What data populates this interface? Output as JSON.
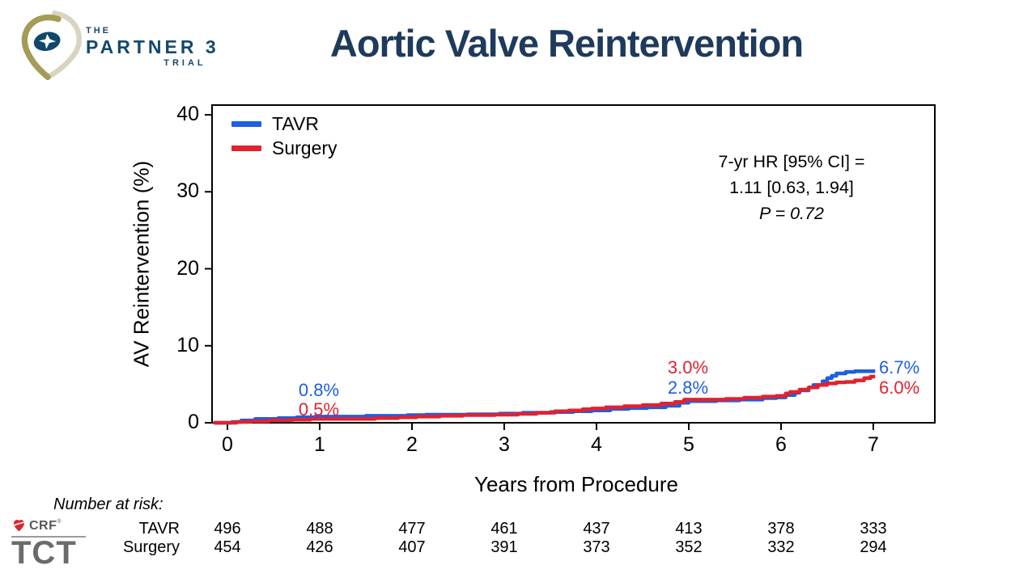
{
  "slide": {
    "title": "Aortic Valve Reintervention"
  },
  "partner_logo": {
    "the": "THE",
    "name": "PARTNER 3",
    "trial": "TRIAL"
  },
  "tct_logo": {
    "crf": "CRF",
    "reg_mark": "®",
    "tct": "TCT"
  },
  "chart_data": {
    "type": "line",
    "subtype": "kaplan-meier-step",
    "title": "Aortic Valve Reintervention",
    "xlabel": "Years from Procedure",
    "ylabel": "AV Reintervention (%)",
    "xlim": [
      0,
      7.65
    ],
    "ylim": [
      0,
      40
    ],
    "x_ticks": [
      0,
      1,
      2,
      3,
      4,
      5,
      6,
      7
    ],
    "y_ticks": [
      0,
      10,
      20,
      30,
      40
    ],
    "grid": false,
    "legend_position": "top-left-inside",
    "annotation": {
      "line1": "7-yr HR [95% CI] =",
      "line2": "1.11 [0.63, 1.94]",
      "line3": "P = 0.72"
    },
    "series": [
      {
        "name": "TAVR",
        "color": "#1e5ee0",
        "points": [
          [
            0.05,
            0.1
          ],
          [
            0.15,
            0.3
          ],
          [
            0.3,
            0.5
          ],
          [
            0.55,
            0.6
          ],
          [
            0.75,
            0.7
          ],
          [
            0.95,
            0.8
          ],
          [
            1.5,
            0.9
          ],
          [
            1.95,
            1.0
          ],
          [
            2.15,
            1.05
          ],
          [
            2.6,
            1.1
          ],
          [
            2.95,
            1.2
          ],
          [
            3.2,
            1.3
          ],
          [
            3.5,
            1.4
          ],
          [
            3.75,
            1.5
          ],
          [
            3.95,
            1.6
          ],
          [
            4.15,
            1.8
          ],
          [
            4.35,
            1.9
          ],
          [
            4.55,
            2.0
          ],
          [
            4.75,
            2.2
          ],
          [
            4.9,
            2.6
          ],
          [
            5.0,
            2.8
          ],
          [
            5.3,
            2.9
          ],
          [
            5.55,
            3.0
          ],
          [
            5.8,
            3.2
          ],
          [
            5.95,
            3.3
          ],
          [
            6.05,
            3.6
          ],
          [
            6.15,
            3.9
          ],
          [
            6.2,
            4.2
          ],
          [
            6.3,
            4.6
          ],
          [
            6.35,
            4.9
          ],
          [
            6.45,
            5.4
          ],
          [
            6.5,
            5.8
          ],
          [
            6.55,
            6.1
          ],
          [
            6.6,
            6.4
          ],
          [
            6.7,
            6.6
          ],
          [
            6.8,
            6.7
          ],
          [
            7.02,
            6.7
          ]
        ]
      },
      {
        "name": "Surgery",
        "color": "#e2222f",
        "points": [
          [
            0.1,
            0.1
          ],
          [
            0.25,
            0.2
          ],
          [
            0.45,
            0.3
          ],
          [
            0.7,
            0.4
          ],
          [
            0.9,
            0.5
          ],
          [
            1.6,
            0.6
          ],
          [
            1.85,
            0.7
          ],
          [
            2.05,
            0.8
          ],
          [
            2.3,
            0.9
          ],
          [
            2.55,
            1.0
          ],
          [
            2.9,
            1.05
          ],
          [
            3.15,
            1.15
          ],
          [
            3.35,
            1.3
          ],
          [
            3.55,
            1.5
          ],
          [
            3.7,
            1.6
          ],
          [
            3.85,
            1.75
          ],
          [
            3.95,
            1.85
          ],
          [
            4.1,
            2.0
          ],
          [
            4.3,
            2.15
          ],
          [
            4.5,
            2.3
          ],
          [
            4.7,
            2.5
          ],
          [
            4.85,
            2.7
          ],
          [
            4.95,
            3.0
          ],
          [
            5.4,
            3.1
          ],
          [
            5.6,
            3.25
          ],
          [
            5.8,
            3.4
          ],
          [
            5.95,
            3.5
          ],
          [
            6.05,
            3.8
          ],
          [
            6.1,
            4.0
          ],
          [
            6.2,
            4.3
          ],
          [
            6.3,
            4.6
          ],
          [
            6.4,
            4.9
          ],
          [
            6.5,
            5.1
          ],
          [
            6.6,
            5.25
          ],
          [
            6.7,
            5.3
          ],
          [
            6.8,
            5.5
          ],
          [
            6.9,
            5.8
          ],
          [
            6.97,
            6.0
          ],
          [
            7.02,
            6.0
          ]
        ]
      }
    ],
    "point_labels": [
      {
        "text": "0.8%",
        "series": "TAVR",
        "year": 1
      },
      {
        "text": "0.5%",
        "series": "Surgery",
        "year": 1
      },
      {
        "text": "3.0%",
        "series": "Surgery",
        "year": 5
      },
      {
        "text": "2.8%",
        "series": "TAVR",
        "year": 5
      },
      {
        "text": "6.7%",
        "series": "TAVR",
        "year": 7
      },
      {
        "text": "6.0%",
        "series": "Surgery",
        "year": 7
      }
    ]
  },
  "risk_table": {
    "label": "Number at risk:",
    "rows": [
      {
        "name": "TAVR",
        "values": [
          496,
          488,
          477,
          461,
          437,
          413,
          378,
          333
        ]
      },
      {
        "name": "Surgery",
        "values": [
          454,
          426,
          407,
          391,
          373,
          352,
          332,
          294
        ]
      }
    ]
  }
}
